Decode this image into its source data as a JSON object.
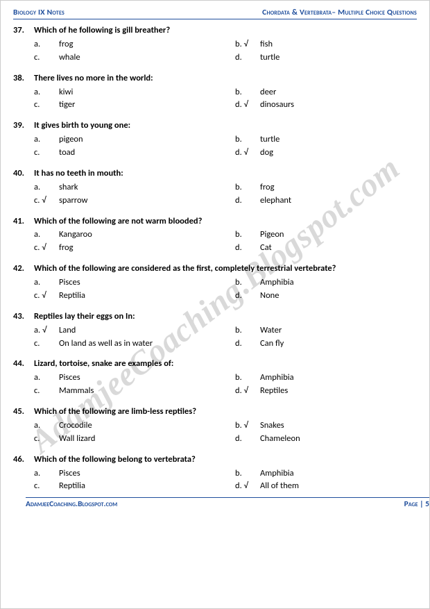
{
  "header": {
    "left": "Biology IX Notes",
    "right": "Chordata & Vertebrata– Multiple Choice Questions"
  },
  "footer": {
    "left": "AdamjeeCoaching.Blogspot.com",
    "right": "Page | 5"
  },
  "watermark": "AdamjeeCoaching.Blogspot.com",
  "check": "√",
  "questions": [
    {
      "num": "37.",
      "text": "Which of he following is gill breather?",
      "opts": [
        {
          "l": "a.",
          "t": "frog",
          "c": false
        },
        {
          "l": "b.",
          "t": "fish",
          "c": true
        },
        {
          "l": "c.",
          "t": "whale",
          "c": false
        },
        {
          "l": "d.",
          "t": "turtle",
          "c": false
        }
      ]
    },
    {
      "num": "38.",
      "text": "There lives no more in the world:",
      "opts": [
        {
          "l": "a.",
          "t": "kiwi",
          "c": false
        },
        {
          "l": "b.",
          "t": "deer",
          "c": false
        },
        {
          "l": "c.",
          "t": "tiger",
          "c": false
        },
        {
          "l": "d.",
          "t": "dinosaurs",
          "c": true
        }
      ]
    },
    {
      "num": "39.",
      "text": "It gives birth to young one:",
      "opts": [
        {
          "l": "a.",
          "t": "pigeon",
          "c": false
        },
        {
          "l": "b.",
          "t": "turtle",
          "c": false
        },
        {
          "l": "c.",
          "t": "toad",
          "c": false
        },
        {
          "l": "d.",
          "t": "dog",
          "c": true
        }
      ]
    },
    {
      "num": "40.",
      "text": "It has no teeth in mouth:",
      "opts": [
        {
          "l": "a.",
          "t": "shark",
          "c": false
        },
        {
          "l": "b.",
          "t": "frog",
          "c": false
        },
        {
          "l": "c.",
          "t": "sparrow",
          "c": true
        },
        {
          "l": "d.",
          "t": "elephant",
          "c": false
        }
      ]
    },
    {
      "num": "41.",
      "text": "Which of the following are not warm blooded?",
      "opts": [
        {
          "l": "a.",
          "t": "Kangaroo",
          "c": false
        },
        {
          "l": "b.",
          "t": "Pigeon",
          "c": false
        },
        {
          "l": "c.",
          "t": "frog",
          "c": true
        },
        {
          "l": "d.",
          "t": "Cat",
          "c": false
        }
      ]
    },
    {
      "num": "42.",
      "text": "Which of the following are considered as the first, completely terrestrial vertebrate?",
      "opts": [
        {
          "l": "a.",
          "t": "Pisces",
          "c": false
        },
        {
          "l": "b.",
          "t": "Amphibia",
          "c": false
        },
        {
          "l": "c.",
          "t": "Reptilia",
          "c": true
        },
        {
          "l": "d.",
          "t": "None",
          "c": false
        }
      ]
    },
    {
      "num": "43.",
      "text": "Reptiles lay their eggs on In:",
      "opts": [
        {
          "l": "a.",
          "t": "Land",
          "c": true
        },
        {
          "l": "b.",
          "t": "Water",
          "c": false
        },
        {
          "l": "c.",
          "t": "On land as well as in water",
          "c": false
        },
        {
          "l": "d.",
          "t": "Can fly",
          "c": false
        }
      ]
    },
    {
      "num": "44.",
      "text": "Lizard, tortoise, snake are examples of:",
      "opts": [
        {
          "l": "a.",
          "t": "Pisces",
          "c": false
        },
        {
          "l": "b.",
          "t": "Amphibia",
          "c": false
        },
        {
          "l": "c.",
          "t": "Mammals",
          "c": false
        },
        {
          "l": "d.",
          "t": "Reptiles",
          "c": true
        }
      ]
    },
    {
      "num": "45.",
      "text": "Which of the following are limb-less reptiles?",
      "opts": [
        {
          "l": "a.",
          "t": "Crocodile",
          "c": false
        },
        {
          "l": "b.",
          "t": "Snakes",
          "c": true
        },
        {
          "l": "c.",
          "t": "Wall lizard",
          "c": false
        },
        {
          "l": "d.",
          "t": "Chameleon",
          "c": false
        }
      ]
    },
    {
      "num": "46.",
      "text": "Which of the following belong to vertebrata?",
      "opts": [
        {
          "l": "a.",
          "t": "Pisces",
          "c": false
        },
        {
          "l": "b.",
          "t": "Amphibia",
          "c": false
        },
        {
          "l": "c.",
          "t": "Reptilia",
          "c": false
        },
        {
          "l": "d.",
          "t": "All of them",
          "c": true
        }
      ]
    }
  ]
}
